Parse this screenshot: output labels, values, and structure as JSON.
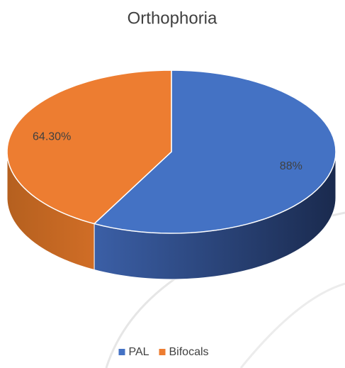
{
  "chart_data": {
    "type": "pie",
    "title": "Orthophoria",
    "categories": [
      "PAL",
      "Bifocals"
    ],
    "values": [
      88,
      64.3
    ],
    "value_labels": [
      "88%",
      "64.30%"
    ],
    "colors": [
      "#4472c4",
      "#ed7d31"
    ],
    "legend": "bottom"
  }
}
